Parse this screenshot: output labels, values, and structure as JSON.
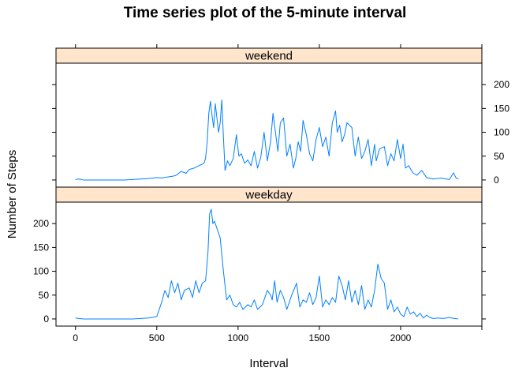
{
  "chart_data": {
    "type": "line",
    "title": "Time series plot of the 5-minute interval",
    "xlabel": "Interval",
    "ylabel": "Number of Steps",
    "xlim": [
      -120,
      2500
    ],
    "ylim": [
      -15,
      245
    ],
    "x_ticks": [
      0,
      500,
      1000,
      1500,
      2000
    ],
    "y_ticks": [
      0,
      50,
      100,
      150,
      200
    ],
    "grid": false,
    "line_color": "#0080ff",
    "strip_color": "#ffe5cc",
    "panels": [
      {
        "name": "weekend",
        "y_axis_side": "right",
        "x": [
          0,
          20,
          50,
          100,
          150,
          200,
          250,
          300,
          350,
          400,
          450,
          500,
          530,
          560,
          600,
          620,
          650,
          680,
          700,
          730,
          760,
          790,
          800,
          810,
          820,
          830,
          840,
          850,
          860,
          870,
          880,
          890,
          900,
          910,
          920,
          935,
          950,
          970,
          990,
          1005,
          1020,
          1040,
          1060,
          1080,
          1100,
          1120,
          1140,
          1160,
          1180,
          1200,
          1215,
          1230,
          1245,
          1260,
          1280,
          1300,
          1320,
          1340,
          1355,
          1370,
          1385,
          1400,
          1420,
          1440,
          1460,
          1480,
          1500,
          1520,
          1540,
          1560,
          1580,
          1600,
          1610,
          1625,
          1640,
          1655,
          1670,
          1700,
          1720,
          1740,
          1760,
          1780,
          1800,
          1820,
          1840,
          1850,
          1870,
          1900,
          1920,
          1940,
          1960,
          1980,
          2000,
          2015,
          2030,
          2050,
          2075,
          2100,
          2130,
          2160,
          2200,
          2250,
          2300,
          2325,
          2340,
          2355
        ],
        "values": [
          1,
          2,
          0,
          0,
          0,
          0,
          0,
          0,
          1,
          2,
          3,
          5,
          4,
          6,
          8,
          10,
          18,
          14,
          22,
          25,
          30,
          35,
          45,
          80,
          140,
          165,
          135,
          110,
          160,
          130,
          100,
          120,
          168,
          90,
          20,
          40,
          30,
          45,
          95,
          50,
          55,
          35,
          42,
          30,
          60,
          25,
          48,
          100,
          40,
          80,
          140,
          100,
          60,
          120,
          130,
          50,
          75,
          25,
          45,
          80,
          60,
          125,
          95,
          55,
          40,
          85,
          110,
          70,
          90,
          50,
          120,
          145,
          100,
          115,
          80,
          95,
          120,
          110,
          50,
          90,
          45,
          60,
          85,
          30,
          75,
          40,
          65,
          70,
          30,
          55,
          40,
          85,
          45,
          75,
          25,
          30,
          15,
          10,
          20,
          5,
          2,
          4,
          1,
          15,
          5,
          2
        ]
      },
      {
        "name": "weekday",
        "y_axis_side": "left",
        "x": [
          0,
          20,
          50,
          100,
          150,
          200,
          250,
          300,
          350,
          400,
          450,
          500,
          530,
          550,
          570,
          590,
          610,
          630,
          650,
          670,
          700,
          720,
          740,
          760,
          780,
          800,
          815,
          825,
          835,
          845,
          855,
          870,
          890,
          910,
          930,
          950,
          970,
          990,
          1010,
          1030,
          1060,
          1080,
          1100,
          1120,
          1150,
          1180,
          1200,
          1210,
          1225,
          1240,
          1260,
          1280,
          1300,
          1330,
          1360,
          1380,
          1400,
          1420,
          1440,
          1460,
          1480,
          1500,
          1520,
          1540,
          1560,
          1580,
          1600,
          1620,
          1640,
          1660,
          1680,
          1700,
          1720,
          1740,
          1760,
          1780,
          1800,
          1820,
          1840,
          1860,
          1880,
          1900,
          1920,
          1940,
          1960,
          1980,
          2000,
          2020,
          2040,
          2060,
          2080,
          2100,
          2120,
          2140,
          2160,
          2180,
          2200,
          2230,
          2260,
          2300,
          2330,
          2355
        ],
        "values": [
          2,
          1,
          0,
          0,
          0,
          0,
          0,
          0,
          0,
          1,
          2,
          5,
          35,
          60,
          45,
          80,
          55,
          75,
          40,
          60,
          65,
          45,
          80,
          55,
          75,
          80,
          140,
          220,
          230,
          200,
          205,
          190,
          170,
          100,
          40,
          50,
          30,
          25,
          35,
          20,
          30,
          25,
          40,
          20,
          30,
          60,
          50,
          40,
          80,
          35,
          60,
          45,
          20,
          50,
          75,
          25,
          40,
          35,
          55,
          30,
          45,
          90,
          25,
          40,
          30,
          45,
          35,
          90,
          70,
          40,
          80,
          35,
          60,
          30,
          70,
          20,
          40,
          25,
          60,
          115,
          85,
          75,
          20,
          40,
          15,
          25,
          10,
          5,
          25,
          10,
          15,
          5,
          12,
          2,
          8,
          3,
          1,
          2,
          1,
          3,
          1,
          0
        ]
      }
    ]
  }
}
